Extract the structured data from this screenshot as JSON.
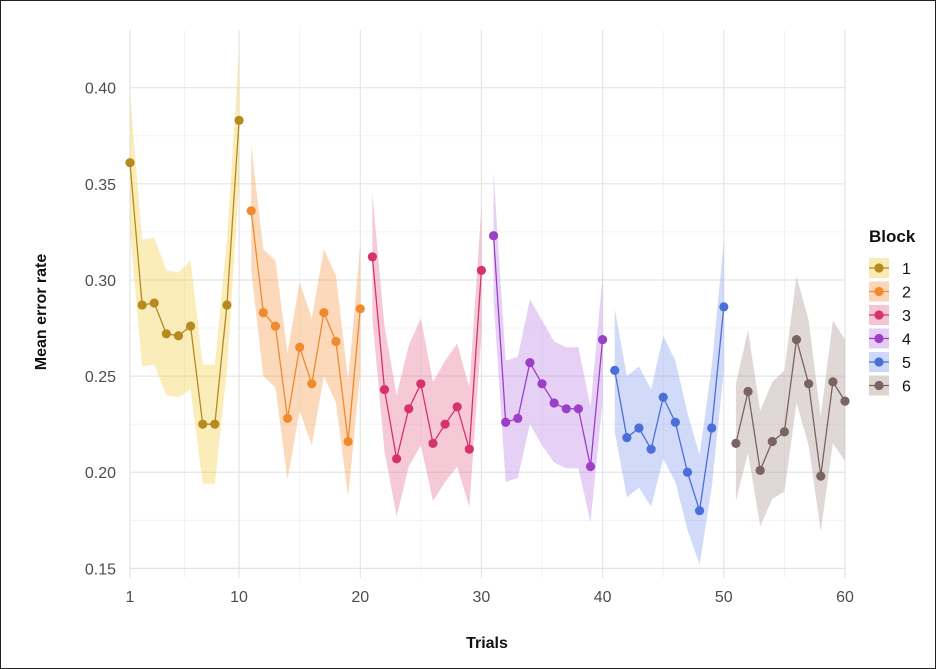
{
  "chart_data": {
    "type": "line",
    "xlabel": "Trials",
    "ylabel": "Mean error rate",
    "xlim": [
      1,
      60
    ],
    "ylim": [
      0.145,
      0.43
    ],
    "x_ticks": [
      1,
      10,
      20,
      30,
      40,
      50,
      60
    ],
    "y_ticks": [
      0.15,
      0.2,
      0.25,
      0.3,
      0.35,
      0.4
    ],
    "y_tick_labels": [
      "0.15",
      "0.20",
      "0.25",
      "0.30",
      "0.35",
      "0.40"
    ],
    "grid": true,
    "legend_title": "Block",
    "legend_position": "right",
    "series": [
      {
        "name": "1",
        "color": "#b58a1e",
        "band_color": "#f5d35a",
        "x": [
          1,
          2,
          3,
          4,
          5,
          6,
          7,
          8,
          9,
          10
        ],
        "y": [
          0.361,
          0.287,
          0.288,
          0.272,
          0.271,
          0.276,
          0.225,
          0.225,
          0.287,
          0.383
        ],
        "lower": [
          0.325,
          0.255,
          0.256,
          0.24,
          0.239,
          0.243,
          0.194,
          0.194,
          0.253,
          0.35
        ],
        "upper": [
          0.397,
          0.321,
          0.322,
          0.305,
          0.304,
          0.31,
          0.256,
          0.256,
          0.321,
          0.42
        ]
      },
      {
        "name": "2",
        "color": "#f08a2c",
        "band_color": "#f7a55e",
        "x": [
          11,
          12,
          13,
          14,
          15,
          16,
          17,
          18,
          19,
          20
        ],
        "y": [
          0.336,
          0.283,
          0.276,
          0.228,
          0.265,
          0.246,
          0.283,
          0.268,
          0.216,
          0.285
        ],
        "lower": [
          0.305,
          0.25,
          0.244,
          0.196,
          0.232,
          0.214,
          0.25,
          0.236,
          0.187,
          0.252
        ],
        "upper": [
          0.37,
          0.316,
          0.31,
          0.262,
          0.299,
          0.28,
          0.316,
          0.302,
          0.248,
          0.318
        ]
      },
      {
        "name": "3",
        "color": "#d6336c",
        "band_color": "#ea7fa0",
        "x": [
          21,
          22,
          23,
          24,
          25,
          26,
          27,
          28,
          29,
          30
        ],
        "y": [
          0.312,
          0.243,
          0.207,
          0.233,
          0.246,
          0.215,
          0.225,
          0.234,
          0.212,
          0.305
        ],
        "lower": [
          0.28,
          0.211,
          0.177,
          0.203,
          0.214,
          0.185,
          0.195,
          0.203,
          0.182,
          0.272
        ],
        "upper": [
          0.345,
          0.276,
          0.24,
          0.266,
          0.28,
          0.247,
          0.258,
          0.267,
          0.244,
          0.338
        ]
      },
      {
        "name": "4",
        "color": "#9b3fc7",
        "band_color": "#c690e6",
        "x": [
          31,
          32,
          33,
          34,
          35,
          36,
          37,
          38,
          39,
          40
        ],
        "y": [
          0.323,
          0.226,
          0.228,
          0.257,
          0.246,
          0.236,
          0.233,
          0.233,
          0.203,
          0.269
        ],
        "lower": [
          0.29,
          0.195,
          0.197,
          0.225,
          0.214,
          0.205,
          0.202,
          0.202,
          0.174,
          0.237
        ],
        "upper": [
          0.356,
          0.258,
          0.26,
          0.29,
          0.279,
          0.268,
          0.265,
          0.265,
          0.234,
          0.302
        ]
      },
      {
        "name": "5",
        "color": "#4a6fd8",
        "band_color": "#93a8f0",
        "x": [
          41,
          42,
          43,
          44,
          45,
          46,
          47,
          48,
          49,
          50
        ],
        "y": [
          0.253,
          0.218,
          0.223,
          0.212,
          0.239,
          0.226,
          0.2,
          0.18,
          0.223,
          0.286
        ],
        "lower": [
          0.221,
          0.187,
          0.192,
          0.182,
          0.207,
          0.195,
          0.17,
          0.152,
          0.192,
          0.253
        ],
        "upper": [
          0.285,
          0.25,
          0.255,
          0.243,
          0.271,
          0.258,
          0.231,
          0.209,
          0.255,
          0.32
        ]
      },
      {
        "name": "6",
        "color": "#7a6462",
        "band_color": "#b5a19e",
        "x": [
          51,
          52,
          53,
          54,
          55,
          56,
          57,
          58,
          59,
          60
        ],
        "y": [
          0.215,
          0.242,
          0.201,
          0.216,
          0.221,
          0.269,
          0.246,
          0.198,
          0.247,
          0.237
        ],
        "lower": [
          0.185,
          0.21,
          0.172,
          0.186,
          0.19,
          0.236,
          0.214,
          0.169,
          0.215,
          0.206
        ],
        "upper": [
          0.246,
          0.274,
          0.232,
          0.247,
          0.253,
          0.302,
          0.279,
          0.229,
          0.279,
          0.269
        ]
      }
    ]
  }
}
